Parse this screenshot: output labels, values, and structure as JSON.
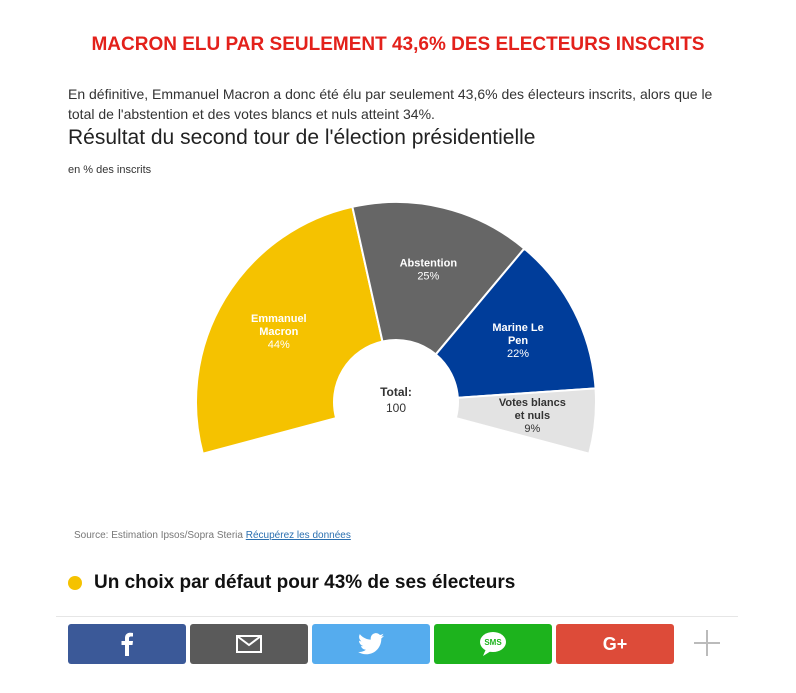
{
  "headline": "MACRON ELU PAR SEULEMENT 43,6% DES ELECTEURS INSCRITS",
  "intro": "En définitive, Emmanuel Macron a donc été élu par seulement 43,6% des électeurs inscrits, alors que le total de l'abstention et des votes blancs et nuls atteint 34%.",
  "chart_data": {
    "type": "pie",
    "subtype": "semi-donut",
    "title": "Résultat du second tour de l'élection présidentielle",
    "subtitle": "en % des inscrits",
    "center_label": "Total:",
    "center_value": "100",
    "slices": [
      {
        "name_lines": [
          "Emmanuel",
          "Macron"
        ],
        "value": 44,
        "label": "44%",
        "color": "#f5c200"
      },
      {
        "name_lines": [
          "Abstention"
        ],
        "value": 25,
        "label": "25%",
        "color": "#666666"
      },
      {
        "name_lines": [
          "Marine Le",
          "Pen"
        ],
        "value": 22,
        "label": "22%",
        "color": "#003d9a"
      },
      {
        "name_lines": [
          "Votes blancs",
          "et nuls"
        ],
        "value": 9,
        "label": "9%",
        "color": "#e3e3e3"
      }
    ]
  },
  "source": {
    "text": "Source: Estimation Ipsos/Sopra Steria",
    "link": "Récupérez les données"
  },
  "section_heading": "Un choix par défaut pour 43% de ses électeurs",
  "section_dot_color": "#f5c200",
  "share_buttons": [
    {
      "name": "facebook",
      "color": "#3b5998",
      "icon": "facebook-icon"
    },
    {
      "name": "email",
      "color": "#5a5a5a",
      "icon": "email-icon"
    },
    {
      "name": "twitter",
      "color": "#55acee",
      "icon": "twitter-icon"
    },
    {
      "name": "sms",
      "color": "#1db31d",
      "icon": "sms-icon",
      "label": "SMS"
    },
    {
      "name": "google-plus",
      "color": "#dd4b39",
      "icon": "google-plus-icon",
      "label": "G+"
    }
  ]
}
